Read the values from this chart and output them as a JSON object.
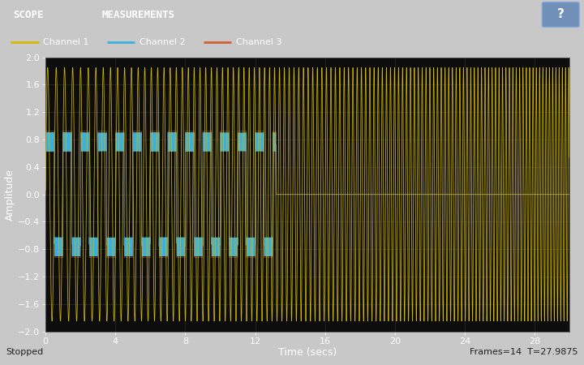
{
  "title_bar_color": "#0e3f6e",
  "plot_bg_color": "#0d0d0d",
  "legend_bg_color": "#1c1c1c",
  "status_bar_color": "#c8c8c8",
  "channel1_color": "#d4b800",
  "channel2_color": "#3ab0e0",
  "channel3_color": "#d06030",
  "xlabel": "Time (secs)",
  "ylabel": "Amplitude",
  "ylim": [
    -2,
    2
  ],
  "xlim": [
    0,
    29.9875
  ],
  "yticks": [
    -2.0,
    -1.6,
    -1.2,
    -0.8,
    -0.4,
    0.0,
    0.4,
    0.8,
    1.2,
    1.6,
    2.0
  ],
  "xticks": [
    0,
    4,
    8,
    12,
    16,
    20,
    24,
    28
  ],
  "scope_label": "SCOPE",
  "measurements_label": "MEASUREMENTS",
  "channel1_label": "Channel 1",
  "channel2_label": "Channel 2",
  "channel3_label": "Channel 3",
  "status_left": "Stopped",
  "status_right": "Frames=14  T=27.9875",
  "duration": 29.9875,
  "ch2_cutoff": 13.2,
  "ch3_cutoff": 13.2
}
